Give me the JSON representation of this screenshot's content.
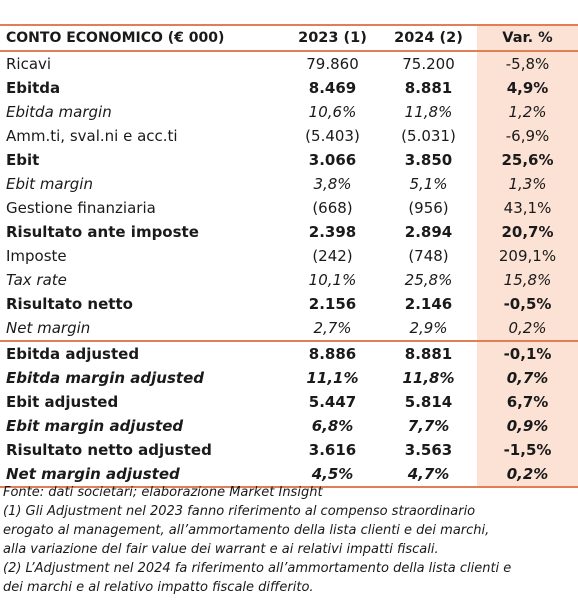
{
  "table": {
    "headers": [
      "CONTO ECONOMICO (€ 000)",
      "2023 (1)",
      "2024 (2)",
      "Var. %"
    ],
    "rows": [
      {
        "label": "Ricavi",
        "y2023": "79.860",
        "y2024": "75.200",
        "var": "-5,8%",
        "style": "normal"
      },
      {
        "label": "Ebitda",
        "y2023": "8.469",
        "y2024": "8.881",
        "var": "4,9%",
        "style": "bold"
      },
      {
        "label": "Ebitda margin",
        "y2023": "10,6%",
        "y2024": "11,8%",
        "var": "1,2%",
        "style": "italic"
      },
      {
        "label": "Amm.ti, sval.ni e acc.ti",
        "y2023": "(5.403)",
        "y2024": "(5.031)",
        "var": "-6,9%",
        "style": "normal"
      },
      {
        "label": "Ebit",
        "y2023": "3.066",
        "y2024": "3.850",
        "var": "25,6%",
        "style": "bold"
      },
      {
        "label": "Ebit margin",
        "y2023": "3,8%",
        "y2024": "5,1%",
        "var": "1,3%",
        "style": "italic"
      },
      {
        "label": "Gestione finanziaria",
        "y2023": "(668)",
        "y2024": "(956)",
        "var": "43,1%",
        "style": "normal"
      },
      {
        "label": "Risultato ante imposte",
        "y2023": "2.398",
        "y2024": "2.894",
        "var": "20,7%",
        "style": "bold"
      },
      {
        "label": "Imposte",
        "y2023": "(242)",
        "y2024": "(748)",
        "var": "209,1%",
        "style": "normal"
      },
      {
        "label": "Tax rate",
        "y2023": "10,1%",
        "y2024": "25,8%",
        "var": "15,8%",
        "style": "italic"
      },
      {
        "label": "Risultato netto",
        "y2023": "2.156",
        "y2024": "2.146",
        "var": "-0,5%",
        "style": "bold"
      },
      {
        "label": "Net margin",
        "y2023": "2,7%",
        "y2024": "2,9%",
        "var": "0,2%",
        "style": "italic"
      },
      {
        "label": "Ebitda adjusted",
        "y2023": "8.886",
        "y2024": "8.881",
        "var": "-0,1%",
        "style": "bold"
      },
      {
        "label": "Ebitda margin adjusted",
        "y2023": "11,1%",
        "y2024": "11,8%",
        "var": "0,7%",
        "style": "bold-italic"
      },
      {
        "label": "Ebit adjusted",
        "y2023": "5.447",
        "y2024": "5.814",
        "var": "6,7%",
        "style": "bold"
      },
      {
        "label": "Ebit margin adjusted",
        "y2023": "6,8%",
        "y2024": "7,7%",
        "var": "0,9%",
        "style": "bold-italic"
      },
      {
        "label": "Risultato netto adjusted",
        "y2023": "3.616",
        "y2024": "3.563",
        "var": "-1,5%",
        "style": "bold"
      },
      {
        "label": "Net margin adjusted",
        "y2023": "4,5%",
        "y2024": "4,7%",
        "var": "0,2%",
        "style": "bold-italic"
      }
    ]
  },
  "notes": {
    "source": "Fonte: dati societari; elaborazione Market Insight",
    "note1_lines": [
      "(1) Gli Adjustment nel 2023 fanno riferimento al compenso straordinario",
      "erogato al management, all’ammortamento della lista clienti e dei marchi,",
      "alla variazione del fair value dei warrant e ai relativi impatti fiscali."
    ],
    "note2_lines": [
      "(2) L’Adjustment nel 2024 fa riferimento all’ammortamento della lista clienti e",
      "dei marchi e al relativo impatto fiscale differito."
    ]
  },
  "colors": {
    "accent_border": "#e07f56",
    "var_column_bg": "#fbe2d5"
  }
}
